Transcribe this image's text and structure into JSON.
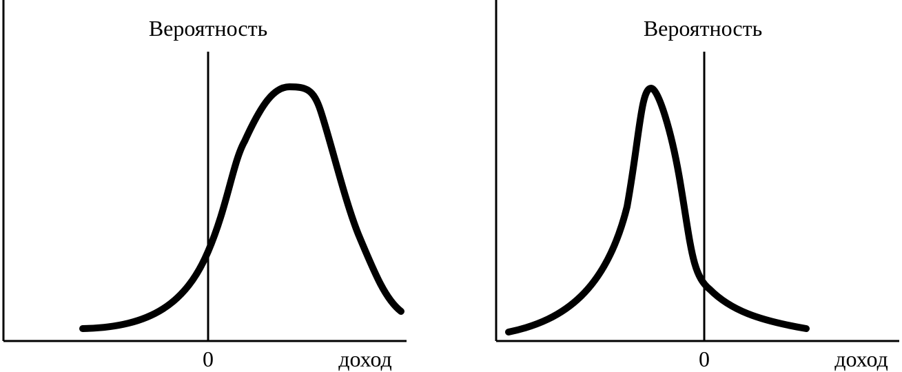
{
  "panels": [
    {
      "y_label": "Вероятность",
      "zero_label": "0",
      "x_label": "доход"
    },
    {
      "y_label": "Вероятность",
      "zero_label": "0",
      "x_label": "доход"
    }
  ]
}
